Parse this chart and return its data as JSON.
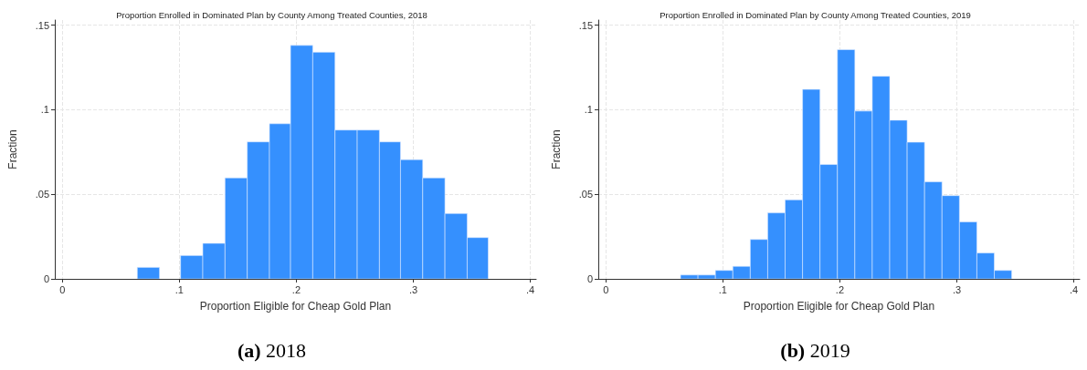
{
  "chart_data": [
    {
      "type": "histogram",
      "title": "Proportion Enrolled in Dominated Plan by County Among Treated Counties, 2018",
      "xlabel": "Proportion Eligible for Cheap Gold Plan",
      "ylabel": "Fraction",
      "annotations": [
        "(a) 2018"
      ],
      "color": "#3590fe",
      "bins": [
        0.064,
        0.083,
        0.101,
        0.12,
        0.139,
        0.158,
        0.177,
        0.195,
        0.214,
        0.233,
        0.252,
        0.271,
        0.289,
        0.308,
        0.327,
        0.346,
        0.364
      ],
      "values": [
        0.0068,
        0,
        0.0138,
        0.021,
        0.0597,
        0.081,
        0.0917,
        0.138,
        0.134,
        0.088,
        0.088,
        0.081,
        0.0705,
        0.0597,
        0.0386,
        0.0244
      ],
      "xlim": [
        -0.0065,
        0.405
      ],
      "xticks": [
        0,
        {
          "value": 0.1,
          "label": ".1"
        },
        {
          "value": 0.2,
          "label": ".2"
        },
        {
          "value": 0.3,
          "label": ".3"
        },
        {
          "value": 0.4,
          "label": ".4"
        }
      ],
      "ylim": [
        0,
        0.153
      ],
      "yticks": [
        0,
        {
          "value": 0.05,
          "label": ".05"
        },
        {
          "value": 0.1,
          "label": ".1"
        },
        {
          "value": 0.15,
          "label": ".15"
        }
      ],
      "grid": true
    },
    {
      "type": "histogram",
      "title": "Proportion Enrolled in Dominated Plan by County Among Treated Counties, 2019",
      "xlabel": "Proportion Eligible for Cheap Gold Plan",
      "ylabel": "Fraction",
      "annotations": [
        "(b) 2019"
      ],
      "color": "#3590fe",
      "bins": [
        0.0638,
        0.0787,
        0.0936,
        0.1085,
        0.1234,
        0.1383,
        0.1532,
        0.1681,
        0.183,
        0.1979,
        0.2128,
        0.2277,
        0.2426,
        0.2575,
        0.2724,
        0.2873,
        0.3022,
        0.3171,
        0.332,
        0.3469
      ],
      "values": [
        0.0023,
        0.0023,
        0.005,
        0.0074,
        0.0233,
        0.039,
        0.0467,
        0.112,
        0.0676,
        0.1355,
        0.0992,
        0.1198,
        0.0938,
        0.0808,
        0.0574,
        0.0492,
        0.0337,
        0.0153,
        0.005
      ],
      "xlim": [
        -0.0065,
        0.405
      ],
      "xticks": [
        0,
        {
          "value": 0.1,
          "label": ".1"
        },
        {
          "value": 0.2,
          "label": ".2"
        },
        {
          "value": 0.3,
          "label": ".3"
        },
        {
          "value": 0.4,
          "label": ".4"
        }
      ],
      "ylim": [
        0,
        0.153
      ],
      "yticks": [
        0,
        {
          "value": 0.05,
          "label": ".05"
        },
        {
          "value": 0.1,
          "label": ".1"
        },
        {
          "value": 0.15,
          "label": ".15"
        }
      ],
      "grid": true
    }
  ]
}
